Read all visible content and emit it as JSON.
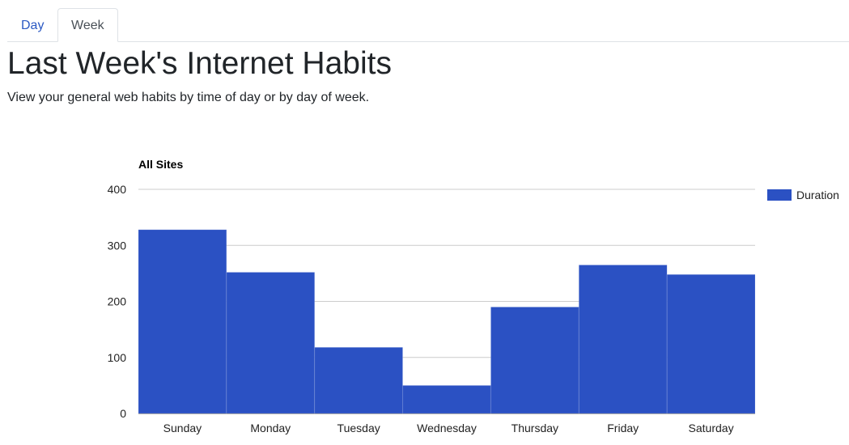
{
  "tabs": [
    {
      "label": "Day",
      "active": false
    },
    {
      "label": "Week",
      "active": true
    }
  ],
  "header": {
    "title": "Last Week's Internet Habits",
    "subtitle": "View your general web habits by time of day or by day of week."
  },
  "colors": {
    "bar": "#2b51c3",
    "tab_link": "#2b59c3",
    "gridline": "#cccccc",
    "axis": "#333333"
  },
  "chart_data": {
    "type": "bar",
    "title": "All Sites",
    "categories": [
      "Sunday",
      "Monday",
      "Tuesday",
      "Wednesday",
      "Thursday",
      "Friday",
      "Saturday"
    ],
    "series": [
      {
        "name": "Duration",
        "values": [
          328,
          252,
          118,
          50,
          190,
          265,
          248
        ]
      }
    ],
    "yticks": [
      0,
      100,
      200,
      300,
      400
    ],
    "ylim": [
      0,
      400
    ],
    "grid": true,
    "legend_position": "right"
  }
}
